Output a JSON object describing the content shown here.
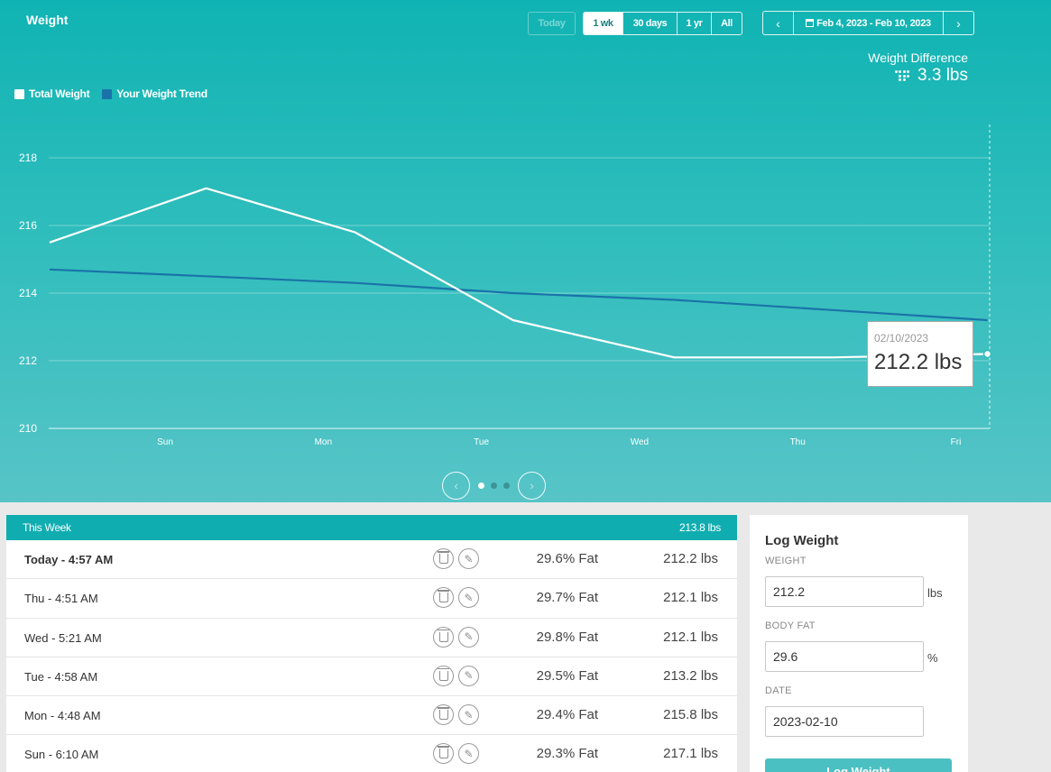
{
  "header": {
    "title": "Weight",
    "today_label": "Today",
    "ranges": [
      {
        "label": "1 wk",
        "active": true
      },
      {
        "label": "30 days",
        "active": false
      },
      {
        "label": "1 yr",
        "active": false
      },
      {
        "label": "All",
        "active": false
      }
    ],
    "date_range": "Feb 4, 2023 - Feb 10, 2023",
    "prev_icon": "chevron-left-icon",
    "next_icon": "chevron-right-icon",
    "calendar_icon": "calendar-icon"
  },
  "difference": {
    "label": "Weight Difference",
    "value": "3.3 lbs",
    "icon": "down-trend-dots-icon"
  },
  "legend": [
    {
      "label": "Total Weight",
      "color": "#ffffff"
    },
    {
      "label": "Your Weight Trend",
      "color": "#1a73a8"
    }
  ],
  "chart_data": {
    "type": "line",
    "categories": [
      "Sun",
      "Mon",
      "Tue",
      "Wed",
      "Thu",
      "Fri"
    ],
    "y_ticks": [
      210,
      212,
      214,
      216,
      218
    ],
    "ylim": [
      210,
      219
    ],
    "grid": true,
    "series": [
      {
        "name": "Total Weight",
        "color": "#ffffff",
        "points": [
          [
            -0.73,
            215.5
          ],
          [
            0.26,
            217.1
          ],
          [
            1.2,
            215.8
          ],
          [
            2.2,
            213.2
          ],
          [
            3.22,
            212.1
          ],
          [
            4.22,
            212.1
          ],
          [
            5.2,
            212.2
          ]
        ]
      },
      {
        "name": "Your Weight Trend",
        "color": "#1a73a8",
        "points": [
          [
            -0.73,
            214.7
          ],
          [
            0.26,
            214.5
          ],
          [
            1.2,
            214.3
          ],
          [
            2.2,
            214.0
          ],
          [
            3.22,
            213.8
          ],
          [
            4.22,
            213.5
          ],
          [
            5.2,
            213.2
          ]
        ]
      }
    ],
    "tooltip": {
      "date": "02/10/2023",
      "value": "212.2 lbs"
    }
  },
  "pager": {
    "pages": 3,
    "current": 0
  },
  "week": {
    "title": "This Week",
    "average": "213.8 lbs",
    "entries": [
      {
        "when": "Today - 4:57 AM",
        "fat": "29.6% Fat",
        "weight": "212.2 lbs",
        "bold": true
      },
      {
        "when": "Thu - 4:51 AM",
        "fat": "29.7% Fat",
        "weight": "212.1 lbs"
      },
      {
        "when": "Wed - 5:21 AM",
        "fat": "29.8% Fat",
        "weight": "212.1 lbs"
      },
      {
        "when": "Tue - 4:58 AM",
        "fat": "29.5% Fat",
        "weight": "213.2 lbs"
      },
      {
        "when": "Mon - 4:48 AM",
        "fat": "29.4% Fat",
        "weight": "215.8 lbs"
      },
      {
        "when": "Sun - 6:10 AM",
        "fat": "29.3% Fat",
        "weight": "217.1 lbs"
      }
    ]
  },
  "log": {
    "title": "Log Weight",
    "weight_label": "WEIGHT",
    "weight_value": "212.2",
    "weight_unit": "lbs",
    "fat_label": "BODY FAT",
    "fat_value": "29.6",
    "fat_unit": "%",
    "date_label": "DATE",
    "date_value": "2023-02-10",
    "submit_label": "Log Weight"
  }
}
